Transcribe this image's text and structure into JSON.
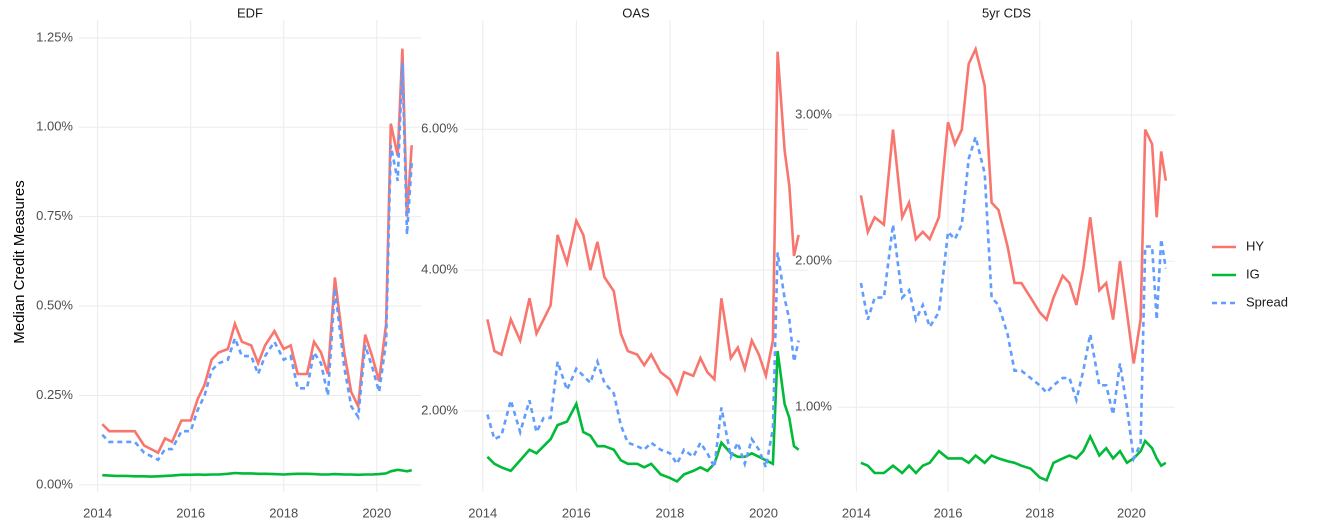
{
  "chart_data": [
    {
      "type": "line",
      "title": "EDF",
      "ylabel": "Median Credit Measures",
      "x": [
        2014.1,
        2014.25,
        2014.4,
        2014.6,
        2014.8,
        2015.0,
        2015.15,
        2015.3,
        2015.45,
        2015.6,
        2015.8,
        2016.0,
        2016.15,
        2016.3,
        2016.45,
        2016.6,
        2016.8,
        2016.95,
        2017.1,
        2017.3,
        2017.45,
        2017.6,
        2017.8,
        2018.0,
        2018.15,
        2018.3,
        2018.5,
        2018.65,
        2018.8,
        2018.95,
        2019.1,
        2019.3,
        2019.45,
        2019.6,
        2019.75,
        2019.9,
        2020.05,
        2020.2,
        2020.3,
        2020.45,
        2020.55,
        2020.65,
        2020.75
      ],
      "series": [
        {
          "name": "HY",
          "color": "#f8766d",
          "linestyle": "solid",
          "values": [
            0.17,
            0.15,
            0.15,
            0.15,
            0.15,
            0.11,
            0.1,
            0.09,
            0.13,
            0.12,
            0.18,
            0.18,
            0.24,
            0.28,
            0.35,
            0.37,
            0.38,
            0.45,
            0.4,
            0.39,
            0.34,
            0.39,
            0.43,
            0.38,
            0.39,
            0.31,
            0.31,
            0.4,
            0.37,
            0.31,
            0.58,
            0.37,
            0.26,
            0.22,
            0.42,
            0.36,
            0.29,
            0.45,
            1.01,
            0.92,
            1.22,
            0.75,
            0.95
          ]
        },
        {
          "name": "IG",
          "color": "#00ba38",
          "linestyle": "solid",
          "values": [
            0.027,
            0.026,
            0.025,
            0.025,
            0.024,
            0.024,
            0.023,
            0.024,
            0.025,
            0.026,
            0.028,
            0.028,
            0.029,
            0.028,
            0.029,
            0.029,
            0.031,
            0.033,
            0.032,
            0.032,
            0.031,
            0.031,
            0.03,
            0.029,
            0.03,
            0.031,
            0.031,
            0.03,
            0.029,
            0.029,
            0.03,
            0.029,
            0.029,
            0.028,
            0.029,
            0.029,
            0.03,
            0.032,
            0.038,
            0.042,
            0.04,
            0.038,
            0.041
          ]
        },
        {
          "name": "Spread",
          "color": "#619cff",
          "linestyle": "dashed",
          "values": [
            0.14,
            0.12,
            0.12,
            0.12,
            0.12,
            0.09,
            0.08,
            0.07,
            0.1,
            0.1,
            0.15,
            0.15,
            0.21,
            0.25,
            0.32,
            0.34,
            0.35,
            0.41,
            0.36,
            0.36,
            0.31,
            0.36,
            0.4,
            0.35,
            0.36,
            0.27,
            0.27,
            0.37,
            0.34,
            0.25,
            0.55,
            0.33,
            0.22,
            0.19,
            0.39,
            0.33,
            0.26,
            0.4,
            0.95,
            0.85,
            1.18,
            0.7,
            0.9
          ]
        }
      ],
      "xlim": [
        2013.6,
        2020.95
      ],
      "xticks": [
        2014,
        2016,
        2018,
        2020
      ],
      "ylim": [
        -0.02,
        1.3
      ],
      "yticks": [
        {
          "value": 0,
          "label": "0.00%"
        },
        {
          "value": 0.25,
          "label": "0.25%"
        },
        {
          "value": 0.5,
          "label": "0.50%"
        },
        {
          "value": 0.75,
          "label": "0.75%"
        },
        {
          "value": 1.0,
          "label": "1.00%"
        },
        {
          "value": 1.25,
          "label": "1.25%"
        }
      ],
      "grid": true
    },
    {
      "type": "line",
      "title": "OAS",
      "x": [
        2014.1,
        2014.25,
        2014.4,
        2014.6,
        2014.8,
        2015.0,
        2015.15,
        2015.3,
        2015.45,
        2015.6,
        2015.8,
        2016.0,
        2016.15,
        2016.3,
        2016.45,
        2016.6,
        2016.8,
        2016.95,
        2017.1,
        2017.3,
        2017.45,
        2017.6,
        2017.8,
        2018.0,
        2018.15,
        2018.3,
        2018.5,
        2018.65,
        2018.8,
        2018.95,
        2019.1,
        2019.3,
        2019.45,
        2019.6,
        2019.75,
        2019.9,
        2020.05,
        2020.2,
        2020.3,
        2020.45,
        2020.55,
        2020.65,
        2020.75
      ],
      "series": [
        {
          "name": "HY",
          "color": "#f8766d",
          "linestyle": "solid",
          "values": [
            3.3,
            2.85,
            2.8,
            3.3,
            3.0,
            3.6,
            3.1,
            3.3,
            3.5,
            4.5,
            4.1,
            4.7,
            4.5,
            4.0,
            4.4,
            3.9,
            3.7,
            3.1,
            2.85,
            2.8,
            2.65,
            2.8,
            2.55,
            2.45,
            2.25,
            2.55,
            2.5,
            2.75,
            2.55,
            2.45,
            3.6,
            2.75,
            2.9,
            2.6,
            3.0,
            2.8,
            2.5,
            3.0,
            7.1,
            5.7,
            5.2,
            4.2,
            4.5
          ]
        },
        {
          "name": "IG",
          "color": "#00ba38",
          "linestyle": "solid",
          "values": [
            1.35,
            1.25,
            1.2,
            1.15,
            1.3,
            1.45,
            1.4,
            1.5,
            1.6,
            1.8,
            1.85,
            2.1,
            1.7,
            1.65,
            1.5,
            1.5,
            1.45,
            1.3,
            1.25,
            1.25,
            1.2,
            1.25,
            1.1,
            1.05,
            1.0,
            1.1,
            1.15,
            1.2,
            1.15,
            1.25,
            1.55,
            1.4,
            1.35,
            1.35,
            1.4,
            1.35,
            1.3,
            1.25,
            2.85,
            2.1,
            1.9,
            1.5,
            1.45
          ]
        },
        {
          "name": "Spread",
          "color": "#619cff",
          "linestyle": "dashed",
          "values": [
            1.95,
            1.6,
            1.65,
            2.15,
            1.7,
            2.15,
            1.7,
            1.9,
            1.9,
            2.7,
            2.3,
            2.6,
            2.5,
            2.4,
            2.7,
            2.4,
            2.25,
            1.8,
            1.55,
            1.5,
            1.45,
            1.55,
            1.45,
            1.4,
            1.25,
            1.45,
            1.35,
            1.55,
            1.4,
            1.2,
            2.05,
            1.35,
            1.55,
            1.25,
            1.6,
            1.45,
            1.2,
            1.75,
            4.25,
            3.6,
            3.3,
            2.7,
            3.0
          ]
        }
      ],
      "xlim": [
        2013.6,
        2020.95
      ],
      "xticks": [
        2014,
        2016,
        2018,
        2020
      ],
      "ylim": [
        0.85,
        7.55
      ],
      "yticks": [
        {
          "value": 2,
          "label": "2.00%"
        },
        {
          "value": 4,
          "label": "4.00%"
        },
        {
          "value": 6,
          "label": "6.00%"
        }
      ],
      "grid": true
    },
    {
      "type": "line",
      "title": "5yr CDS",
      "x": [
        2014.1,
        2014.25,
        2014.4,
        2014.6,
        2014.8,
        2015.0,
        2015.15,
        2015.3,
        2015.45,
        2015.6,
        2015.8,
        2016.0,
        2016.15,
        2016.3,
        2016.45,
        2016.6,
        2016.8,
        2016.95,
        2017.1,
        2017.3,
        2017.45,
        2017.6,
        2017.8,
        2018.0,
        2018.15,
        2018.3,
        2018.5,
        2018.65,
        2018.8,
        2018.95,
        2019.1,
        2019.3,
        2019.45,
        2019.6,
        2019.75,
        2019.9,
        2020.05,
        2020.2,
        2020.3,
        2020.45,
        2020.55,
        2020.65,
        2020.75
      ],
      "series": [
        {
          "name": "HY",
          "color": "#f8766d",
          "linestyle": "solid",
          "values": [
            2.45,
            2.2,
            2.3,
            2.25,
            2.9,
            2.3,
            2.4,
            2.15,
            2.2,
            2.15,
            2.3,
            2.95,
            2.8,
            2.9,
            3.35,
            3.45,
            3.2,
            2.4,
            2.35,
            2.1,
            1.85,
            1.85,
            1.75,
            1.65,
            1.6,
            1.75,
            1.9,
            1.85,
            1.7,
            1.95,
            2.3,
            1.8,
            1.85,
            1.6,
            2.0,
            1.65,
            1.3,
            1.6,
            2.9,
            2.8,
            2.3,
            2.75,
            2.55
          ]
        },
        {
          "name": "IG",
          "color": "#00ba38",
          "linestyle": "solid",
          "values": [
            0.62,
            0.6,
            0.55,
            0.55,
            0.6,
            0.55,
            0.6,
            0.55,
            0.6,
            0.62,
            0.7,
            0.65,
            0.65,
            0.65,
            0.62,
            0.67,
            0.62,
            0.67,
            0.65,
            0.63,
            0.62,
            0.6,
            0.58,
            0.52,
            0.5,
            0.62,
            0.65,
            0.67,
            0.65,
            0.7,
            0.8,
            0.67,
            0.72,
            0.65,
            0.7,
            0.62,
            0.65,
            0.7,
            0.77,
            0.72,
            0.65,
            0.6,
            0.62
          ]
        },
        {
          "name": "Spread",
          "color": "#619cff",
          "linestyle": "dashed",
          "values": [
            1.85,
            1.6,
            1.75,
            1.75,
            2.25,
            1.75,
            1.8,
            1.6,
            1.7,
            1.55,
            1.65,
            2.2,
            2.15,
            2.25,
            2.7,
            2.85,
            2.6,
            1.75,
            1.7,
            1.5,
            1.25,
            1.25,
            1.2,
            1.15,
            1.1,
            1.15,
            1.2,
            1.2,
            1.05,
            1.25,
            1.5,
            1.15,
            1.15,
            0.95,
            1.3,
            1.0,
            0.65,
            0.75,
            2.1,
            2.1,
            1.6,
            2.15,
            1.95
          ]
        }
      ],
      "xlim": [
        2013.6,
        2020.95
      ],
      "xticks": [
        2014,
        2016,
        2018,
        2020
      ],
      "ylim": [
        0.42,
        3.65
      ],
      "yticks": [
        {
          "value": 1,
          "label": "1.00%"
        },
        {
          "value": 2,
          "label": "2.00%"
        },
        {
          "value": 3,
          "label": "3.00%"
        }
      ],
      "grid": true
    }
  ]
}
